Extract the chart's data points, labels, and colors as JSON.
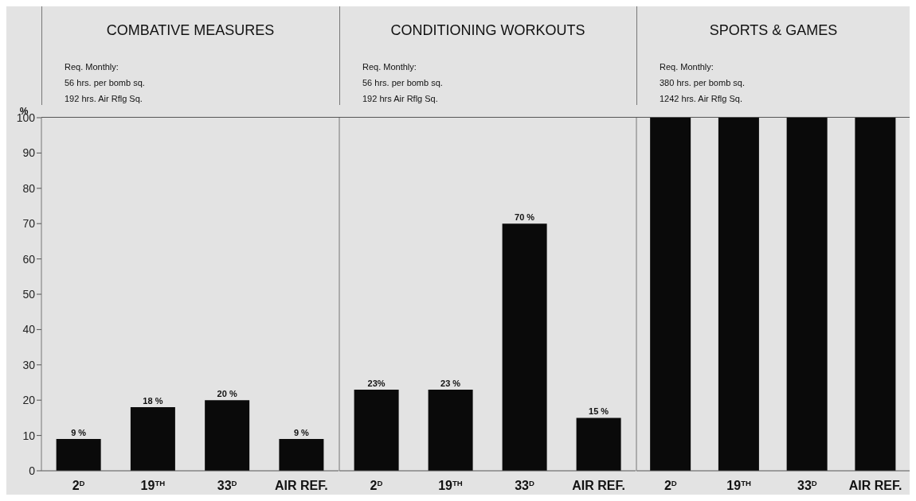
{
  "chart_data": [
    {
      "type": "bar",
      "title": "COMBATIVE MEASURES",
      "annotations": [
        "Req. Monthly:",
        "56 hrs. per bomb sq.",
        "192 hrs. Air Rflg Sq."
      ],
      "ylabel": "%",
      "categories": [
        "2$^{D}$",
        "19$^{TH}$",
        "33$^{D}$",
        "AIR REF."
      ],
      "values": [
        9,
        18,
        20,
        9
      ],
      "value_labels": [
        "9 %",
        "18 %",
        "20 %",
        "9 %"
      ],
      "color": "#0a0a0a",
      "ylim": [
        0,
        100
      ],
      "yticks": [
        0,
        10,
        20,
        30,
        40,
        50,
        60,
        70,
        80,
        90,
        100
      ]
    },
    {
      "type": "bar",
      "title": "CONDITIONING WORKOUTS",
      "annotations": [
        "Req. Monthly:",
        "56 hrs. per bomb sq.",
        "192 hrs Air Rflg Sq."
      ],
      "categories": [
        "2$^{D}$",
        "19$^{TH}$",
        "33$^{D}$",
        "AIR REF."
      ],
      "values": [
        23,
        23,
        70,
        15
      ],
      "value_labels": [
        "23%",
        "23 %",
        "70 %",
        "15 %"
      ],
      "color": "#0a0a0a",
      "ylim": [
        0,
        100
      ],
      "yticks": [
        0,
        10,
        20,
        30,
        40,
        50,
        60,
        70,
        80,
        90,
        100
      ],
      "tick_labels": "x"
    },
    {
      "type": "bar",
      "title": "SPORTS & GAMES",
      "annotations": [
        "Req. Monthly:",
        "380 hrs. per bomb sq.",
        "1242 hrs. Air Rflg Sq."
      ],
      "categories": [
        "2$^{D}$",
        "19$^{TH}$",
        "33$^{D}$",
        "AIR REF."
      ],
      "values": [
        100,
        100,
        100,
        100
      ],
      "color": "#0a0a0a",
      "ylim": [
        0,
        100
      ],
      "yticks": [
        0,
        10,
        20,
        30,
        40,
        50,
        60,
        70,
        80,
        90,
        100
      ],
      "tick_labels": "x"
    }
  ]
}
